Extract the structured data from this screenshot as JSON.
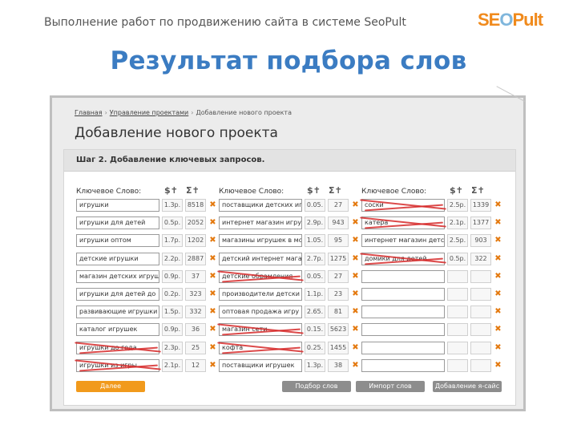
{
  "slide": {
    "header": "Выполнение работ по продвижению сайта в системе SeoPult",
    "logo": {
      "part1": "SE",
      "part2": "O",
      "part3": "Pult"
    },
    "title": "Результат подбора слов"
  },
  "breadcrumb": [
    "Главная",
    "Управление проектами",
    "Добавление нового проекта"
  ],
  "page_title": "Добавление нового проекта",
  "step_title": "Шаг 2. Добавление ключевых запросов.",
  "columns": {
    "keyword_label": "Ключевое Слово:",
    "price_icon": "$✝",
    "count_icon": "Σ✝"
  },
  "rows": [
    [
      {
        "kw": "игрушки",
        "price": "1.3р.",
        "count": "8518"
      },
      {
        "kw": "поставщики детских иг",
        "price": "0.05.",
        "count": "27"
      },
      {
        "kw": "соски",
        "price": "2.5р.",
        "count": "1339"
      }
    ],
    [
      {
        "kw": "игрушки для детей",
        "price": "0.5р.",
        "count": "2052"
      },
      {
        "kw": "интернет магазин игру",
        "price": "2.9р.",
        "count": "943"
      },
      {
        "kw": "катера",
        "price": "2.1р.",
        "count": "1377"
      }
    ],
    [
      {
        "kw": "игрушки оптом",
        "price": "1.7р.",
        "count": "1202"
      },
      {
        "kw": "магазины игрушек в мо",
        "price": "1.05.",
        "count": "95"
      },
      {
        "kw": "интернет магазин детс",
        "price": "2.5р.",
        "count": "903"
      }
    ],
    [
      {
        "kw": "детские игрушки",
        "price": "2.2р.",
        "count": "2887"
      },
      {
        "kw": "детский интернет мага",
        "price": "2.7р.",
        "count": "1275"
      },
      {
        "kw": "домики для детей",
        "price": "0.5р.",
        "count": "322"
      }
    ],
    [
      {
        "kw": "магазин детских игруш",
        "price": "0.9р.",
        "count": "37"
      },
      {
        "kw": "детские обрамления",
        "price": "0.05.",
        "count": "27"
      },
      {
        "kw": "",
        "price": "",
        "count": ""
      }
    ],
    [
      {
        "kw": "игрушки для детей до",
        "price": "0.2р.",
        "count": "323"
      },
      {
        "kw": "производители детски",
        "price": "1.1р.",
        "count": "23"
      },
      {
        "kw": "",
        "price": "",
        "count": ""
      }
    ],
    [
      {
        "kw": "развивающие игрушки д",
        "price": "1.5р.",
        "count": "332"
      },
      {
        "kw": "оптовая продажа игру",
        "price": "2.65.",
        "count": "81"
      },
      {
        "kw": "",
        "price": "",
        "count": ""
      }
    ],
    [
      {
        "kw": "каталог игрушек",
        "price": "0.9р.",
        "count": "36"
      },
      {
        "kw": "магазин сети",
        "price": "0.15.",
        "count": "5623"
      },
      {
        "kw": "",
        "price": "",
        "count": ""
      }
    ],
    [
      {
        "kw": "игрушки до года",
        "price": "2.3р.",
        "count": "25"
      },
      {
        "kw": "кофта",
        "price": "0.25.",
        "count": "1455"
      },
      {
        "kw": "",
        "price": "",
        "count": ""
      }
    ],
    [
      {
        "kw": "игрушки из игры",
        "price": "2.1р.",
        "count": "12"
      },
      {
        "kw": "поставщики игрушек",
        "price": "1.3р.",
        "count": "38"
      },
      {
        "kw": "",
        "price": "",
        "count": ""
      }
    ]
  ],
  "delete_icon": "✖",
  "buttons": {
    "next": "Далее",
    "pick": "Подбор слов",
    "import": "Импорт слов",
    "add": "Добавление я-сайс"
  },
  "colors": {
    "accent": "#f19a1c",
    "title": "#3b7cc2",
    "strike": "#d62a2a"
  }
}
